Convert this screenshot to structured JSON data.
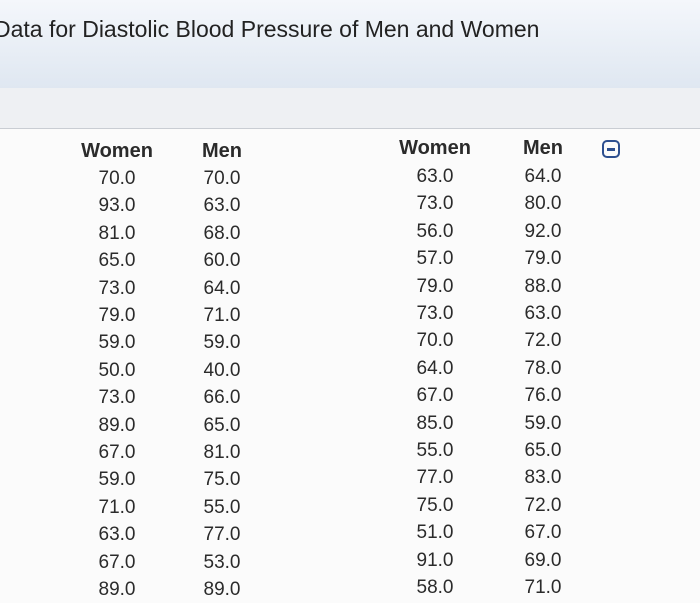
{
  "header": {
    "title": "Data for Diastolic Blood Pressure of Men and Women"
  },
  "table": {
    "columns": [
      "Women",
      "Men",
      "Women",
      "Men"
    ],
    "rows": [
      [
        "70.0",
        "70.0",
        "63.0",
        "64.0"
      ],
      [
        "93.0",
        "63.0",
        "73.0",
        "80.0"
      ],
      [
        "81.0",
        "68.0",
        "56.0",
        "92.0"
      ],
      [
        "65.0",
        "60.0",
        "57.0",
        "79.0"
      ],
      [
        "73.0",
        "64.0",
        "79.0",
        "88.0"
      ],
      [
        "79.0",
        "71.0",
        "73.0",
        "63.0"
      ],
      [
        "59.0",
        "59.0",
        "70.0",
        "72.0"
      ],
      [
        "50.0",
        "40.0",
        "64.0",
        "78.0"
      ],
      [
        "73.0",
        "66.0",
        "67.0",
        "76.0"
      ],
      [
        "89.0",
        "65.0",
        "85.0",
        "59.0"
      ],
      [
        "67.0",
        "81.0",
        "55.0",
        "65.0"
      ],
      [
        "59.0",
        "75.0",
        "77.0",
        "83.0"
      ],
      [
        "71.0",
        "55.0",
        "75.0",
        "72.0"
      ],
      [
        "63.0",
        "77.0",
        "51.0",
        "67.0"
      ],
      [
        "67.0",
        "53.0",
        "91.0",
        "69.0"
      ],
      [
        "89.0",
        "89.0",
        "58.0",
        "71.0"
      ]
    ]
  }
}
